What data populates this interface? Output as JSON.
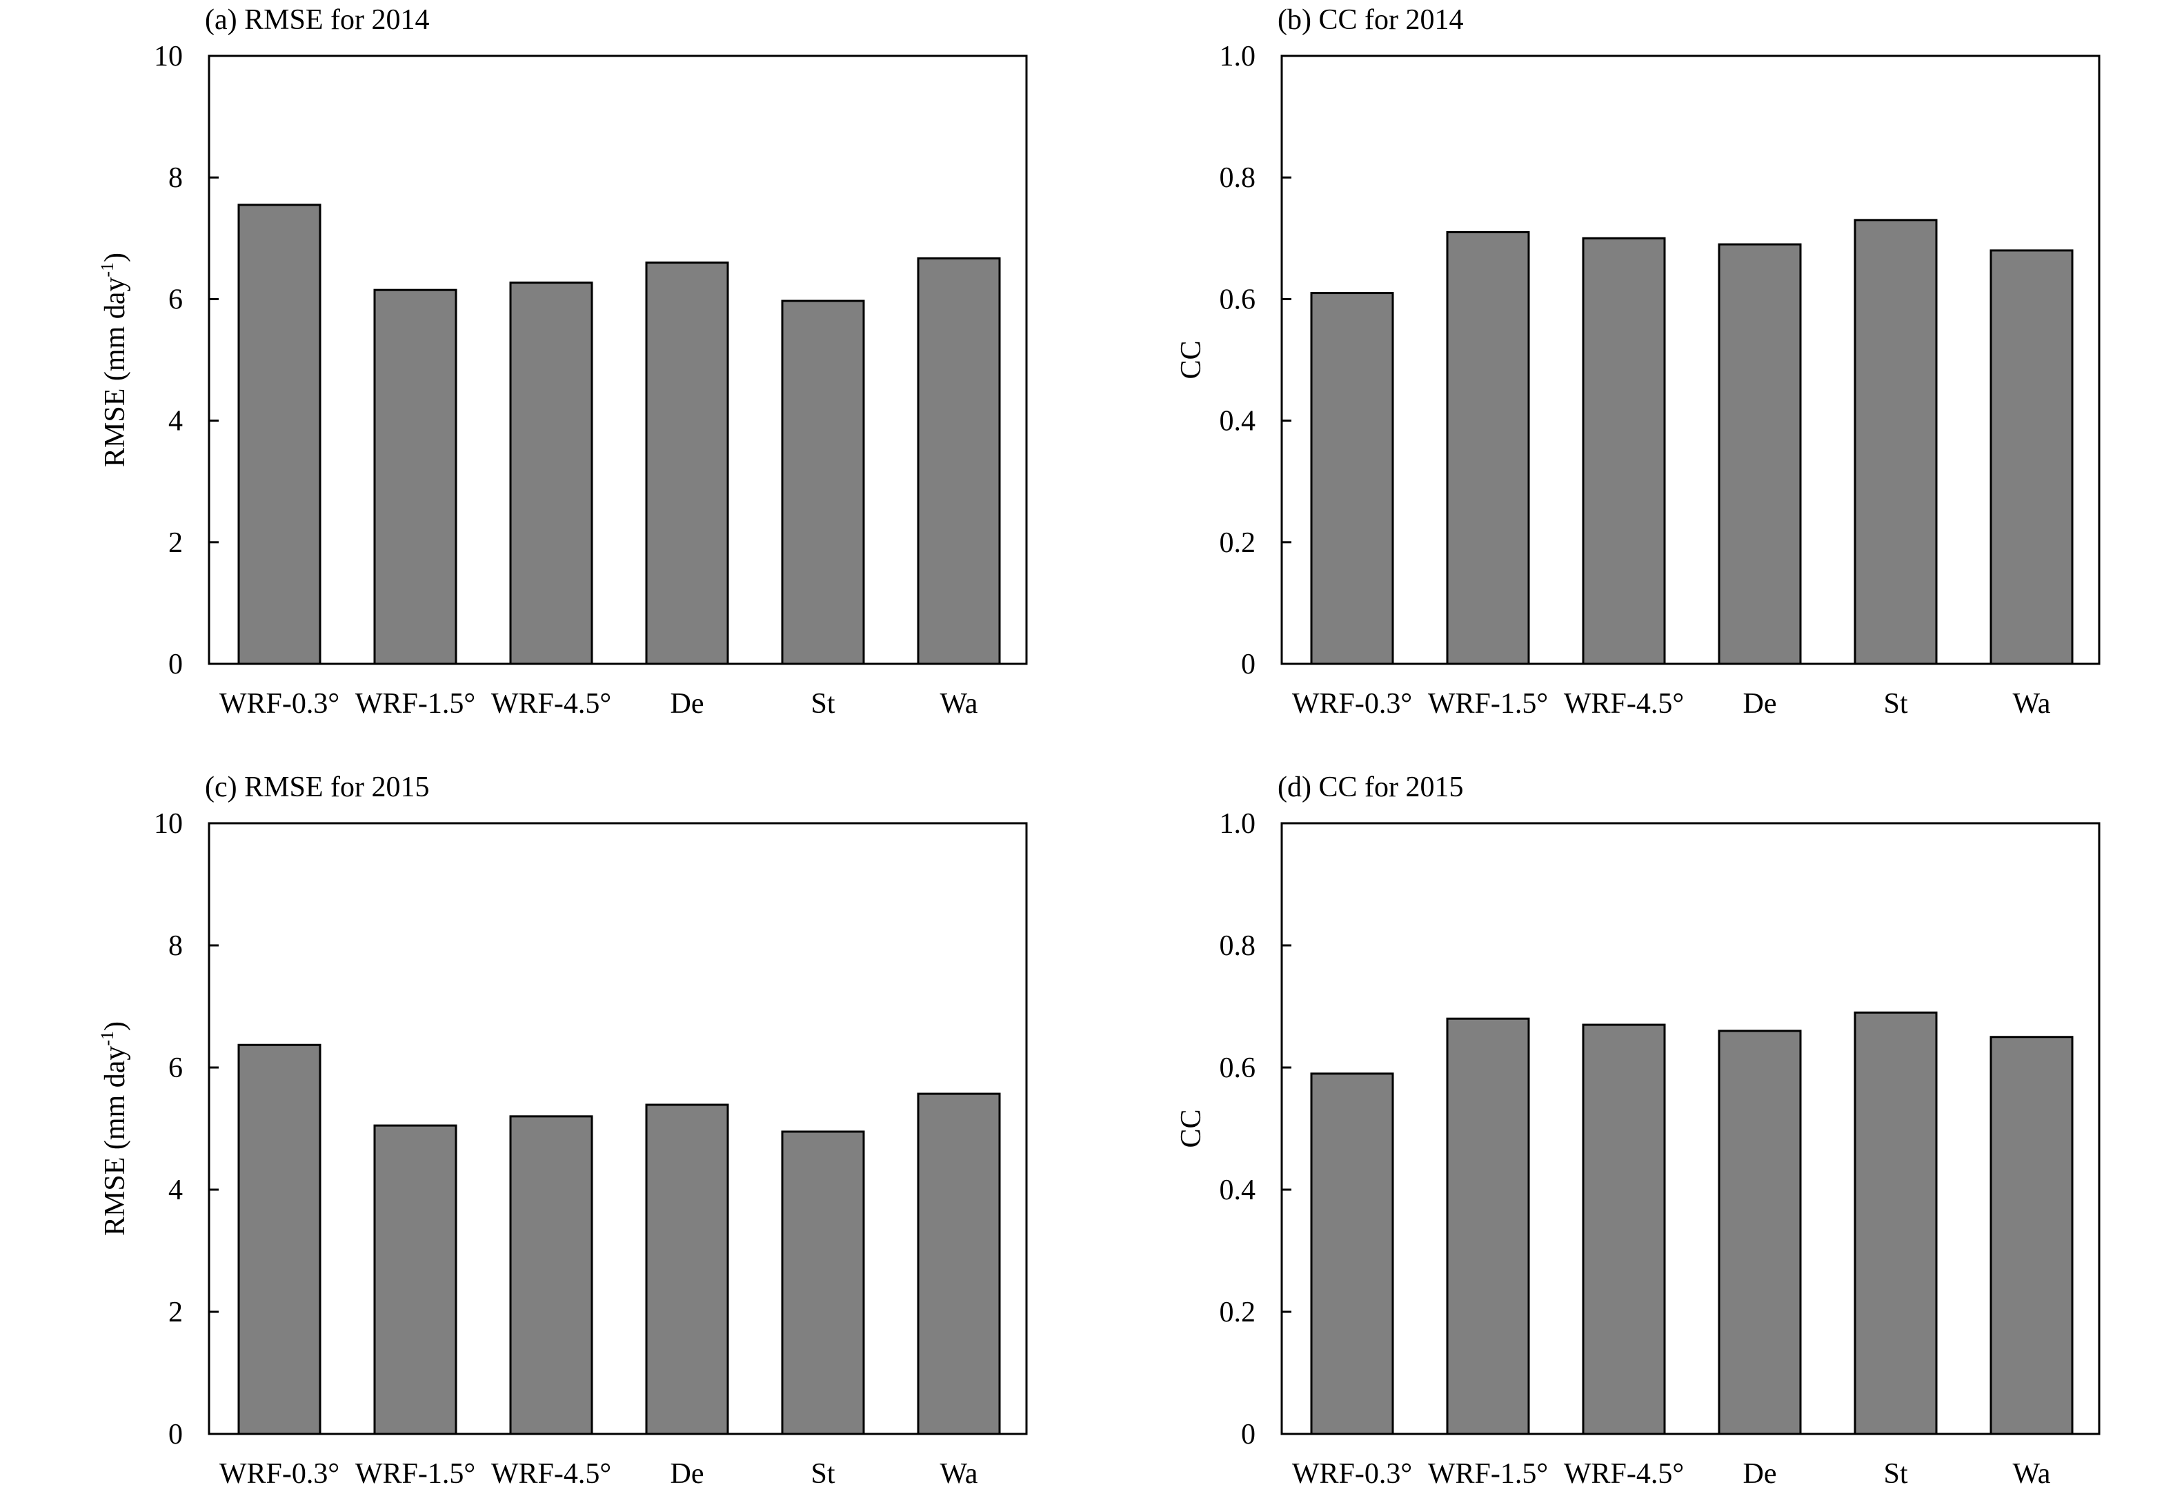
{
  "chart_data": [
    {
      "type": "bar",
      "title": "(a) RMSE for 2014",
      "ylabel": "RMSE (mm day",
      "ylabel_sup": "-1",
      "ylabel_end": ")",
      "categories": [
        "WRF-0.3°",
        "WRF-1.5°",
        "WRF-4.5°",
        "De",
        "St",
        "Wa"
      ],
      "values": [
        7.55,
        6.15,
        6.27,
        6.6,
        5.97,
        6.67
      ],
      "ylim": [
        0,
        10
      ],
      "yticks": [
        0,
        2,
        4,
        6,
        8,
        10
      ],
      "ytick_labels": [
        "0",
        "2",
        "4",
        "6",
        "8",
        "10"
      ],
      "color": "#808080",
      "grid": false
    },
    {
      "type": "bar",
      "title": "(b) CC for 2014",
      "ylabel": "CC",
      "categories": [
        "WRF-0.3°",
        "WRF-1.5°",
        "WRF-4.5°",
        "De",
        "St",
        "Wa"
      ],
      "values": [
        0.61,
        0.71,
        0.7,
        0.69,
        0.73,
        0.68
      ],
      "ylim": [
        0,
        1.0
      ],
      "yticks": [
        0,
        0.2,
        0.4,
        0.6,
        0.8,
        1.0
      ],
      "ytick_labels": [
        "0",
        "0.2",
        "0.4",
        "0.6",
        "0.8",
        "1.0"
      ],
      "color": "#808080",
      "grid": false
    },
    {
      "type": "bar",
      "title": "(c) RMSE for 2015",
      "ylabel": "RMSE (mm day",
      "ylabel_sup": "-1",
      "ylabel_end": ")",
      "categories": [
        "WRF-0.3°",
        "WRF-1.5°",
        "WRF-4.5°",
        "De",
        "St",
        "Wa"
      ],
      "values": [
        6.37,
        5.05,
        5.2,
        5.39,
        4.95,
        5.57
      ],
      "ylim": [
        0,
        10
      ],
      "yticks": [
        0,
        2,
        4,
        6,
        8,
        10
      ],
      "ytick_labels": [
        "0",
        "2",
        "4",
        "6",
        "8",
        "10"
      ],
      "color": "#808080",
      "grid": false
    },
    {
      "type": "bar",
      "title": "(d) CC for 2015",
      "ylabel": "CC",
      "categories": [
        "WRF-0.3°",
        "WRF-1.5°",
        "WRF-4.5°",
        "De",
        "St",
        "Wa"
      ],
      "values": [
        0.59,
        0.68,
        0.67,
        0.66,
        0.69,
        0.65
      ],
      "ylim": [
        0,
        1.0
      ],
      "yticks": [
        0,
        0.2,
        0.4,
        0.6,
        0.8,
        1.0
      ],
      "ytick_labels": [
        "0",
        "0.2",
        "0.4",
        "0.6",
        "0.8",
        "1.0"
      ],
      "color": "#808080",
      "grid": false
    }
  ]
}
